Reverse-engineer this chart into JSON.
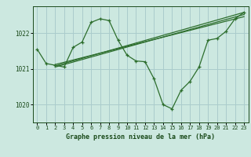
{
  "title": "Graphe pression niveau de la mer (hPa)",
  "bg_color": "#cce8e0",
  "grid_color": "#aacccc",
  "line_color": "#2d6e2d",
  "text_color": "#1a4a1a",
  "xlim": [
    -0.5,
    23.5
  ],
  "ylim": [
    1019.5,
    1022.75
  ],
  "yticks": [
    1020,
    1021,
    1022
  ],
  "xticks": [
    0,
    1,
    2,
    3,
    4,
    5,
    6,
    7,
    8,
    9,
    10,
    11,
    12,
    13,
    14,
    15,
    16,
    17,
    18,
    19,
    20,
    21,
    22,
    23
  ],
  "main_data_x": [
    0,
    1,
    2,
    3,
    4,
    5,
    6,
    7,
    8,
    9,
    10,
    11,
    12,
    13,
    14,
    15,
    16,
    17,
    18,
    19,
    20,
    21,
    22,
    23
  ],
  "main_data_y": [
    1021.55,
    1021.15,
    1021.1,
    1021.05,
    1021.6,
    1021.75,
    1022.3,
    1022.4,
    1022.35,
    1021.8,
    1021.38,
    1021.22,
    1021.2,
    1020.72,
    1020.0,
    1019.88,
    1020.4,
    1020.65,
    1021.05,
    1021.8,
    1021.85,
    1022.05,
    1022.4,
    1022.58
  ],
  "trend_line1_x": [
    2,
    23
  ],
  "trend_line1_y": [
    1021.08,
    1022.58
  ],
  "trend_line2_x": [
    2,
    23
  ],
  "trend_line2_y": [
    1021.05,
    1022.52
  ],
  "trend_line3_x": [
    2,
    23
  ],
  "trend_line3_y": [
    1021.12,
    1022.46
  ]
}
